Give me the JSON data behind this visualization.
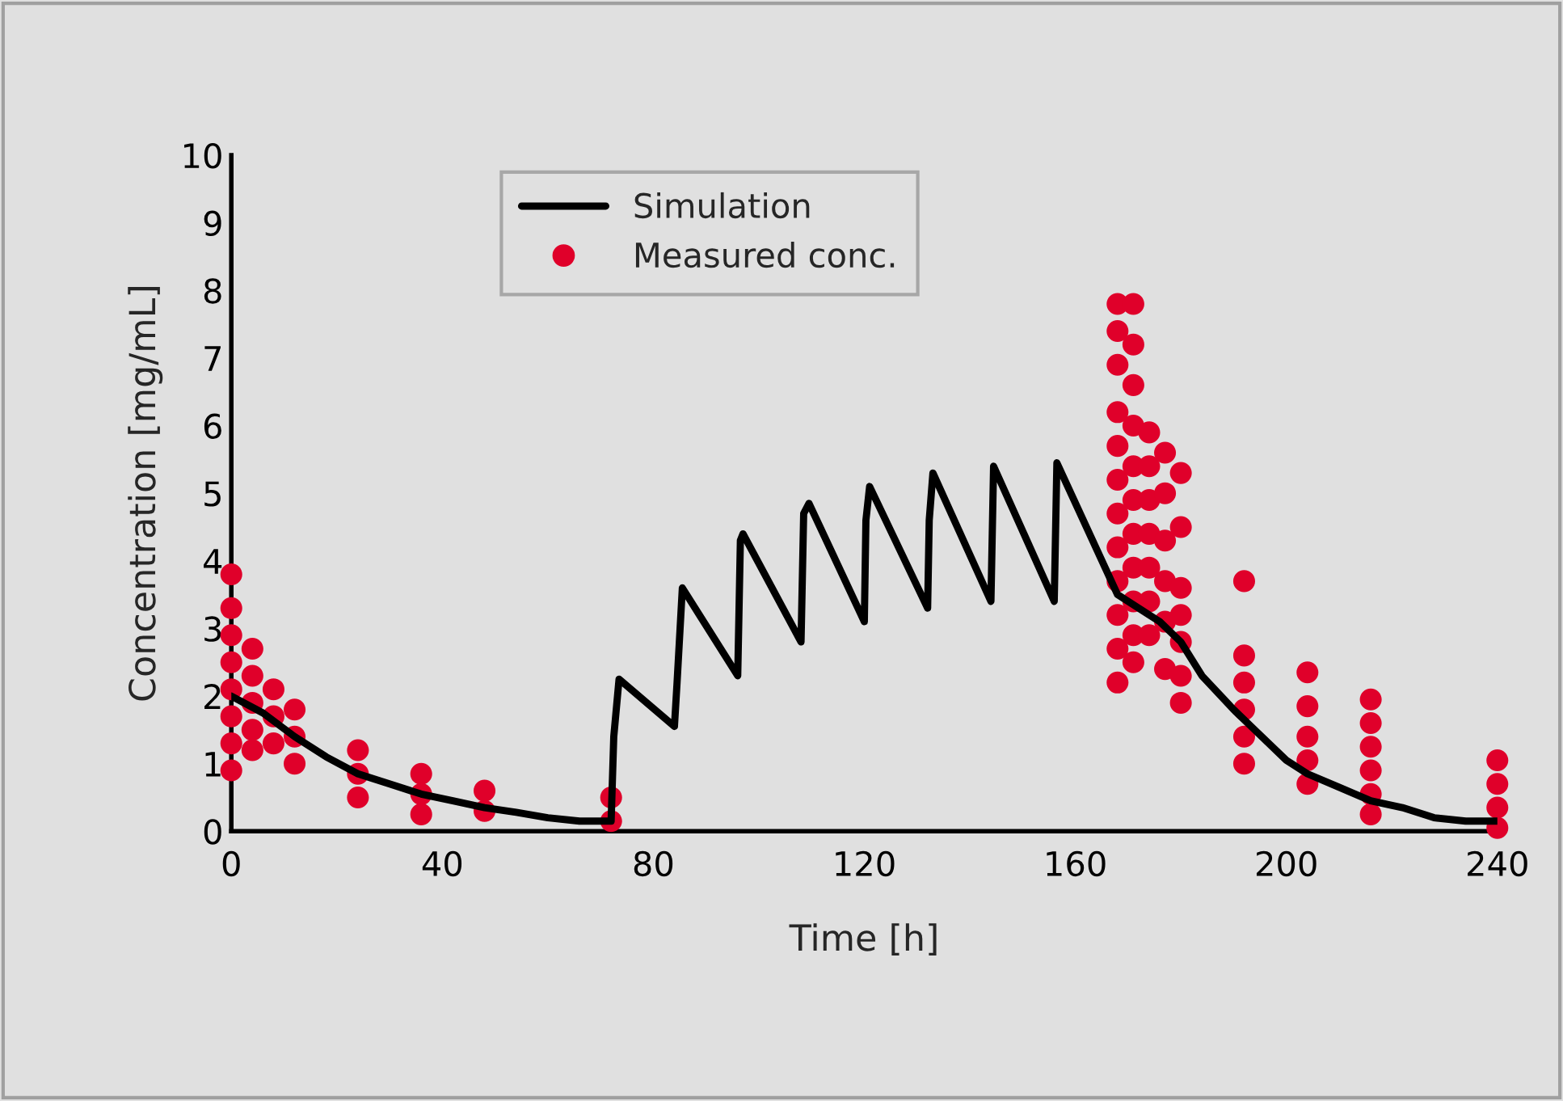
{
  "chart_data": {
    "type": "line",
    "xlabel": "Time [h]",
    "ylabel": "Concentration [mg/mL]",
    "xlim": [
      0,
      240
    ],
    "xticks": [
      0,
      40,
      80,
      120,
      160,
      200,
      240
    ],
    "ylim": [
      0,
      10
    ],
    "yticks": [
      0,
      1,
      2,
      3,
      4,
      5,
      6,
      7,
      8,
      9,
      10
    ],
    "grid": false,
    "legend": "top left",
    "series": [
      {
        "name": "Simulation",
        "color": "#000000",
        "line_style": "solid",
        "marker": "none",
        "x": [
          0,
          6,
          12,
          18,
          24,
          30,
          36,
          42,
          48,
          54,
          60,
          66,
          72,
          72.5,
          73.5,
          84,
          84.5,
          85.5,
          96,
          96.5,
          97,
          108,
          108.5,
          109.5,
          120,
          120.3,
          121,
          132,
          132.3,
          133,
          144,
          144.5,
          156,
          156.5,
          168,
          176,
          180,
          184,
          190,
          194,
          200,
          204,
          210,
          216,
          222,
          228,
          234,
          240
        ],
        "values": [
          2.0,
          1.75,
          1.4,
          1.1,
          0.85,
          0.7,
          0.55,
          0.45,
          0.35,
          0.28,
          0.2,
          0.15,
          0.15,
          1.4,
          2.25,
          1.55,
          2.2,
          3.6,
          2.3,
          4.3,
          4.4,
          2.8,
          4.7,
          4.85,
          3.1,
          4.6,
          5.1,
          3.3,
          4.6,
          5.3,
          3.4,
          5.4,
          3.4,
          5.45,
          3.5,
          3.1,
          2.8,
          2.3,
          1.8,
          1.5,
          1.05,
          0.85,
          0.65,
          0.45,
          0.35,
          0.2,
          0.15,
          0.15
        ]
      },
      {
        "name": "Measured conc.",
        "type": "scatter",
        "color": "#e0002a",
        "marker": "circle",
        "x": [
          0,
          0,
          0,
          0,
          0,
          0,
          0,
          0,
          4,
          4,
          4,
          4,
          4,
          8,
          8,
          8,
          12,
          12,
          12,
          24,
          24,
          24,
          36,
          36,
          36,
          48,
          48,
          72,
          72,
          168,
          168,
          168,
          168,
          168,
          168,
          168,
          168,
          168,
          168,
          168,
          168,
          171,
          171,
          171,
          171,
          171,
          171,
          171,
          171,
          171,
          171,
          171,
          174,
          174,
          174,
          174,
          174,
          174,
          174,
          177,
          177,
          177,
          177,
          177,
          177,
          180,
          180,
          180,
          180,
          180,
          180,
          180,
          192,
          192,
          192,
          192,
          192,
          192,
          204,
          204,
          204,
          204,
          204,
          216,
          216,
          216,
          216,
          216,
          216,
          240,
          240,
          240,
          240
        ],
        "values": [
          3.8,
          3.3,
          2.9,
          2.5,
          2.1,
          1.7,
          1.3,
          0.9,
          2.7,
          2.3,
          1.9,
          1.5,
          1.2,
          2.1,
          1.7,
          1.3,
          1.8,
          1.4,
          1.0,
          1.2,
          0.85,
          0.5,
          0.85,
          0.55,
          0.25,
          0.6,
          0.3,
          0.5,
          0.15,
          7.8,
          7.4,
          6.9,
          6.2,
          5.7,
          5.2,
          4.7,
          4.2,
          3.7,
          3.2,
          2.7,
          2.2,
          7.8,
          7.2,
          6.6,
          6.0,
          5.4,
          4.9,
          4.4,
          3.9,
          3.4,
          2.9,
          2.5,
          5.9,
          5.4,
          4.9,
          4.4,
          3.9,
          3.4,
          2.9,
          5.6,
          5.0,
          4.3,
          3.7,
          3.1,
          2.4,
          5.3,
          4.5,
          3.6,
          3.2,
          2.8,
          2.3,
          1.9,
          3.7,
          2.6,
          2.2,
          1.8,
          1.4,
          1.0,
          2.35,
          1.85,
          1.4,
          1.05,
          0.7,
          1.95,
          1.6,
          1.25,
          0.9,
          0.55,
          0.25,
          1.05,
          0.7,
          0.35,
          0.05
        ]
      }
    ]
  }
}
